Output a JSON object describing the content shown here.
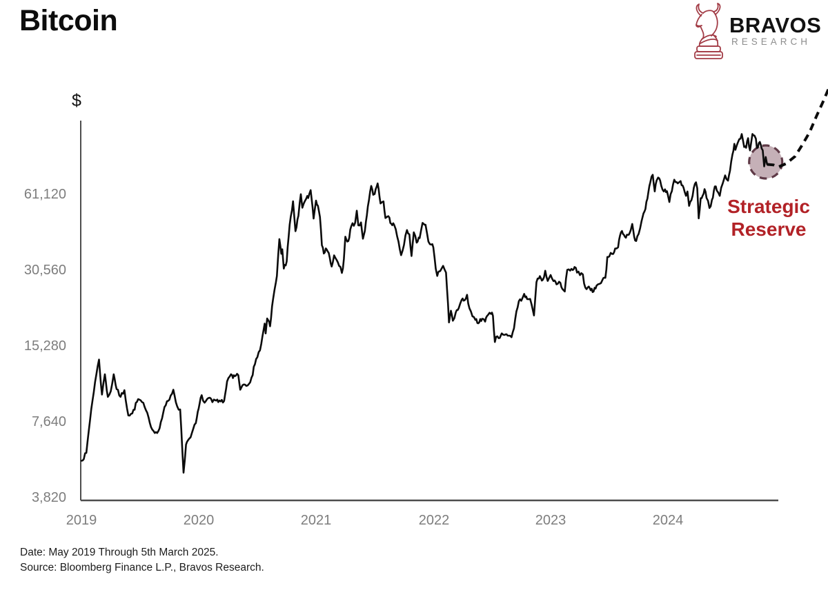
{
  "header": {
    "title": "Bitcoin",
    "logo": {
      "brand": "BRAVOS",
      "sub": "RESEARCH",
      "icon_color": "#a23b45"
    }
  },
  "footer": {
    "date_line": "Date: May 2019 Through 5th March 2025.",
    "source_line": "Source: Bloomberg Finance L.P., Bravos Research."
  },
  "chart_data": {
    "type": "line",
    "title": "Bitcoin",
    "ylabel": "$",
    "xlabel": "",
    "grid": false,
    "legend": "none",
    "line_color": "#0b0b0b",
    "axis_color": "#4d4d4d",
    "y_axis": {
      "scale": "log2",
      "ticks": [
        61120,
        30560,
        15280,
        7640,
        3820
      ],
      "tick_labels": [
        "61,120",
        "30,560",
        "15,280",
        "7,640",
        "3,820"
      ],
      "top_value_approx": 119000
    },
    "x_axis": {
      "tick_labels": [
        "2019",
        "2020",
        "2021",
        "2022",
        "2023",
        "2024"
      ],
      "range": "May 2019 through 5th March 2025, ticks at May of each year"
    },
    "t_unit": "months since 2019-05-01",
    "price_unit": "USD",
    "series": [
      {
        "name": "Bitcoin price",
        "style": "solid",
        "points": [
          [
            0,
            5350
          ],
          [
            0.5,
            5750
          ],
          [
            1,
            8550
          ],
          [
            1.4,
            11000
          ],
          [
            1.8,
            13500
          ],
          [
            2.1,
            9800
          ],
          [
            2.4,
            11800
          ],
          [
            2.7,
            9600
          ],
          [
            3.0,
            10100
          ],
          [
            3.3,
            11800
          ],
          [
            3.6,
            10300
          ],
          [
            4.0,
            9600
          ],
          [
            4.4,
            10200
          ],
          [
            4.8,
            8100
          ],
          [
            5.2,
            8250
          ],
          [
            5.8,
            9400
          ],
          [
            6.2,
            9150
          ],
          [
            6.6,
            8500
          ],
          [
            7.0,
            7550
          ],
          [
            7.5,
            6900
          ],
          [
            8.0,
            7200
          ],
          [
            8.5,
            8750
          ],
          [
            9.0,
            9350
          ],
          [
            9.4,
            10250
          ],
          [
            9.8,
            8800
          ],
          [
            10.1,
            8550
          ],
          [
            10.45,
            4800
          ],
          [
            10.7,
            6200
          ],
          [
            10.9,
            6450
          ],
          [
            11.3,
            6900
          ],
          [
            11.7,
            7550
          ],
          [
            12.0,
            8650
          ],
          [
            12.3,
            9750
          ],
          [
            12.6,
            9100
          ],
          [
            13.0,
            9500
          ],
          [
            13.4,
            9150
          ],
          [
            13.7,
            9300
          ],
          [
            14.0,
            9150
          ],
          [
            14.6,
            9250
          ],
          [
            14.9,
            11050
          ],
          [
            15.3,
            11800
          ],
          [
            15.5,
            11400
          ],
          [
            15.8,
            11650
          ],
          [
            16.05,
            11700
          ],
          [
            16.25,
            10250
          ],
          [
            16.6,
            10750
          ],
          [
            17.0,
            10650
          ],
          [
            17.4,
            11450
          ],
          [
            17.75,
            12950
          ],
          [
            18.0,
            13800
          ],
          [
            18.4,
            15600
          ],
          [
            18.75,
            18750
          ],
          [
            18.85,
            17150
          ],
          [
            19.0,
            19650
          ],
          [
            19.3,
            18300
          ],
          [
            19.6,
            23400
          ],
          [
            19.9,
            27400
          ],
          [
            20.0,
            29000
          ],
          [
            20.25,
            40600
          ],
          [
            20.45,
            35500
          ],
          [
            20.55,
            37000
          ],
          [
            20.7,
            31000
          ],
          [
            21.0,
            33100
          ],
          [
            21.3,
            46300
          ],
          [
            21.65,
            57400
          ],
          [
            21.9,
            43650
          ],
          [
            22.2,
            50300
          ],
          [
            22.45,
            61200
          ],
          [
            22.6,
            54100
          ],
          [
            23.0,
            58750
          ],
          [
            23.2,
            59100
          ],
          [
            23.45,
            63500
          ],
          [
            23.75,
            49000
          ],
          [
            24.0,
            57750
          ],
          [
            24.2,
            55000
          ],
          [
            24.4,
            49700
          ],
          [
            24.6,
            38400
          ],
          [
            24.8,
            35600
          ],
          [
            25.0,
            37300
          ],
          [
            25.3,
            35800
          ],
          [
            25.6,
            31600
          ],
          [
            25.85,
            35000
          ],
          [
            26.1,
            33600
          ],
          [
            26.5,
            31500
          ],
          [
            26.65,
            29800
          ],
          [
            26.85,
            33900
          ],
          [
            27.0,
            41500
          ],
          [
            27.3,
            39900
          ],
          [
            27.6,
            45600
          ],
          [
            28.0,
            47150
          ],
          [
            28.17,
            52650
          ],
          [
            28.33,
            46050
          ],
          [
            28.6,
            47300
          ],
          [
            28.8,
            40750
          ],
          [
            29.0,
            43800
          ],
          [
            29.3,
            54700
          ],
          [
            29.65,
            66000
          ],
          [
            29.85,
            60900
          ],
          [
            30.0,
            61300
          ],
          [
            30.3,
            67550
          ],
          [
            30.6,
            56250
          ],
          [
            30.9,
            57300
          ],
          [
            31.1,
            49250
          ],
          [
            31.4,
            50100
          ],
          [
            31.7,
            46700
          ],
          [
            32.0,
            46200
          ],
          [
            32.3,
            41600
          ],
          [
            32.7,
            35050
          ],
          [
            33.0,
            38500
          ],
          [
            33.3,
            44100
          ],
          [
            33.55,
            42400
          ],
          [
            33.77,
            34800
          ],
          [
            34.0,
            43200
          ],
          [
            34.3,
            39300
          ],
          [
            34.6,
            41000
          ],
          [
            34.9,
            47100
          ],
          [
            35.2,
            46300
          ],
          [
            35.5,
            39700
          ],
          [
            35.8,
            38600
          ],
          [
            36.0,
            37650
          ],
          [
            36.25,
            31000
          ],
          [
            36.4,
            29000
          ],
          [
            36.7,
            30300
          ],
          [
            37.0,
            31800
          ],
          [
            37.3,
            29900
          ],
          [
            37.6,
            18950
          ],
          [
            37.8,
            21100
          ],
          [
            38.0,
            19250
          ],
          [
            38.3,
            20800
          ],
          [
            38.6,
            21600
          ],
          [
            38.9,
            23300
          ],
          [
            39.2,
            23200
          ],
          [
            39.45,
            24400
          ],
          [
            39.7,
            21550
          ],
          [
            40.0,
            20050
          ],
          [
            40.3,
            19400
          ],
          [
            40.6,
            18800
          ],
          [
            40.8,
            19550
          ],
          [
            41.0,
            19600
          ],
          [
            41.3,
            19100
          ],
          [
            41.6,
            20300
          ],
          [
            41.9,
            20500
          ],
          [
            42.1,
            20150
          ],
          [
            42.3,
            15850
          ],
          [
            42.55,
            16700
          ],
          [
            42.8,
            16450
          ],
          [
            43.0,
            17150
          ],
          [
            43.3,
            16900
          ],
          [
            43.6,
            16800
          ],
          [
            44.0,
            16550
          ],
          [
            44.25,
            17950
          ],
          [
            44.5,
            20950
          ],
          [
            44.75,
            23050
          ],
          [
            45.0,
            23100
          ],
          [
            45.3,
            24600
          ],
          [
            45.6,
            23450
          ],
          [
            45.9,
            23500
          ],
          [
            46.05,
            22350
          ],
          [
            46.3,
            20200
          ],
          [
            46.55,
            27400
          ],
          [
            46.8,
            28300
          ],
          [
            47.0,
            28450
          ],
          [
            47.2,
            28000
          ],
          [
            47.45,
            30400
          ],
          [
            47.7,
            27700
          ],
          [
            48.0,
            29250
          ],
          [
            48.3,
            27650
          ],
          [
            48.6,
            26850
          ],
          [
            49.0,
            27200
          ],
          [
            49.2,
            25750
          ],
          [
            49.45,
            25150
          ],
          [
            49.7,
            30650
          ],
          [
            50.0,
            30450
          ],
          [
            50.25,
            30600
          ],
          [
            50.45,
            31450
          ],
          [
            50.7,
            29900
          ],
          [
            51.0,
            29200
          ],
          [
            51.3,
            29400
          ],
          [
            51.55,
            26050
          ],
          [
            51.8,
            26100
          ],
          [
            52.0,
            25950
          ],
          [
            52.2,
            25800
          ],
          [
            52.4,
            25150
          ],
          [
            52.7,
            26550
          ],
          [
            53.0,
            26950
          ],
          [
            53.3,
            27950
          ],
          [
            53.6,
            28500
          ],
          [
            53.8,
            34500
          ],
          [
            54.0,
            34650
          ],
          [
            54.3,
            35450
          ],
          [
            54.6,
            37250
          ],
          [
            54.9,
            37700
          ],
          [
            55.1,
            41950
          ],
          [
            55.3,
            43750
          ],
          [
            55.6,
            41450
          ],
          [
            55.8,
            42250
          ],
          [
            56.0,
            42250
          ],
          [
            56.2,
            44150
          ],
          [
            56.35,
            46650
          ],
          [
            56.55,
            41500
          ],
          [
            56.75,
            39900
          ],
          [
            57.0,
            42550
          ],
          [
            57.3,
            47750
          ],
          [
            57.6,
            52250
          ],
          [
            57.8,
            57050
          ],
          [
            58.0,
            62400
          ],
          [
            58.2,
            68300
          ],
          [
            58.45,
            73100
          ],
          [
            58.65,
            62800
          ],
          [
            58.85,
            69450
          ],
          [
            59.0,
            71300
          ],
          [
            59.2,
            69400
          ],
          [
            59.45,
            63850
          ],
          [
            59.7,
            64000
          ],
          [
            59.9,
            62900
          ],
          [
            60.0,
            60650
          ],
          [
            60.15,
            57000
          ],
          [
            60.4,
            62900
          ],
          [
            60.65,
            69900
          ],
          [
            60.9,
            68350
          ],
          [
            61.0,
            67550
          ],
          [
            61.3,
            69000
          ],
          [
            61.6,
            64950
          ],
          [
            61.85,
            60300
          ],
          [
            62.0,
            62750
          ],
          [
            62.17,
            55000
          ],
          [
            62.4,
            57900
          ],
          [
            62.65,
            64850
          ],
          [
            62.87,
            68250
          ],
          [
            63.0,
            64600
          ],
          [
            63.15,
            49100
          ],
          [
            63.35,
            59000
          ],
          [
            63.55,
            60400
          ],
          [
            63.75,
            64100
          ],
          [
            63.95,
            59100
          ],
          [
            64.1,
            57650
          ],
          [
            64.25,
            53950
          ],
          [
            64.5,
            58100
          ],
          [
            64.7,
            63200
          ],
          [
            64.9,
            65750
          ],
          [
            65.0,
            63300
          ],
          [
            65.15,
            62100
          ],
          [
            65.3,
            60300
          ],
          [
            65.6,
            67400
          ],
          [
            65.85,
            72700
          ],
          [
            66.0,
            70200
          ],
          [
            66.15,
            69300
          ],
          [
            66.35,
            75900
          ],
          [
            66.6,
            87900
          ],
          [
            66.8,
            97000
          ],
          [
            66.9,
            91900
          ],
          [
            67.05,
            95850
          ],
          [
            67.3,
            101200
          ],
          [
            67.55,
            106100
          ],
          [
            67.8,
            94250
          ],
          [
            68.0,
            93550
          ],
          [
            68.2,
            102150
          ],
          [
            68.4,
            91350
          ],
          [
            68.65,
            106150
          ],
          [
            68.85,
            104700
          ],
          [
            69.0,
            101600
          ],
          [
            69.1,
            93500
          ],
          [
            69.3,
            97700
          ],
          [
            69.5,
            96100
          ],
          [
            69.7,
            91500
          ],
          [
            69.85,
            78950
          ],
          [
            70.0,
            86000
          ],
          [
            70.15,
            80400
          ]
        ]
      },
      {
        "name": "Strategic Reserve projection",
        "style": "dashed",
        "points": [
          [
            70.15,
            80400
          ],
          [
            70.8,
            80000
          ],
          [
            71.3,
            78500
          ],
          [
            72.1,
            81000
          ],
          [
            73.0,
            86500
          ],
          [
            73.7,
            95500
          ],
          [
            74.5,
            108000
          ],
          [
            75.2,
            125000
          ],
          [
            75.9,
            143500
          ],
          [
            76.45,
            161000
          ]
        ]
      }
    ],
    "annotations": {
      "strategic_reserve": {
        "label_line1": "Strategic",
        "label_line2": "Reserve",
        "text_color": "#b22227",
        "circle": {
          "t": 70.0,
          "price": 82200,
          "radius_px": 24,
          "fill": "#a2808a",
          "fill_opacity": 0.62,
          "stroke": "#5f3a47"
        }
      }
    }
  }
}
